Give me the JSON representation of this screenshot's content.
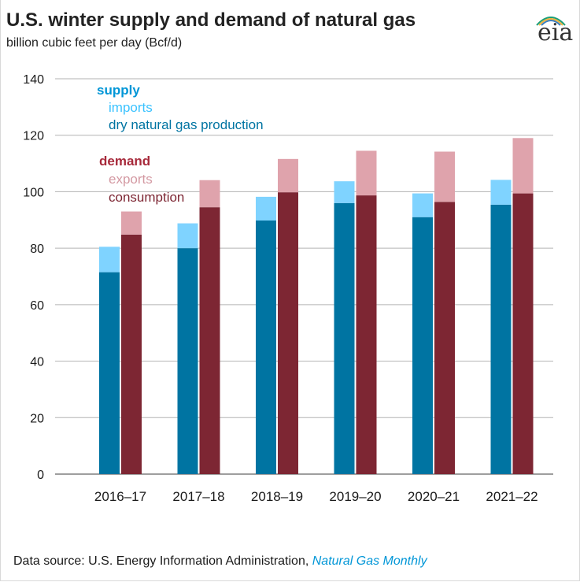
{
  "title": "U.S. winter supply and demand of natural gas",
  "subtitle": "billion cubic feet per day (Bcf/d)",
  "logo_text": "eia",
  "source_prefix": "Data source: U.S. Energy Information Administration,",
  "source_link": "Natural Gas Monthly",
  "colors": {
    "production": "#0074a2",
    "imports": "#7fd3ff",
    "consumption": "#7d2633",
    "exports": "#dfa3ac",
    "supply_label": "#0096d7",
    "demand_label": "#a72a3b",
    "imports_label": "#3cc3ff",
    "exports_label": "#d49aa3",
    "gridline": "#b3b3b3"
  },
  "chart_data": {
    "type": "bar",
    "stacked_groups": true,
    "categories": [
      "2016–17",
      "2017–18",
      "2018–19",
      "2019–20",
      "2020–21",
      "2021–22"
    ],
    "ylim": [
      0,
      140
    ],
    "yticks": [
      "0",
      "20",
      "40",
      "60",
      "80",
      "100",
      "120",
      "140"
    ],
    "grid": true,
    "legend_placement": "top-left",
    "groups": [
      {
        "name": "supply",
        "series": [
          {
            "name": "dry natural gas production",
            "values": [
              71.5,
              80,
              89.8,
              96,
              91,
              95.4
            ]
          },
          {
            "name": "imports",
            "values": [
              9,
              8.8,
              8.4,
              7.7,
              8.4,
              8.8
            ]
          }
        ]
      },
      {
        "name": "demand",
        "series": [
          {
            "name": "consumption",
            "values": [
              84.8,
              94.5,
              99.8,
              98.7,
              96.4,
              99.4
            ]
          },
          {
            "name": "exports",
            "values": [
              8.2,
              9.6,
              11.8,
              15.8,
              17.8,
              19.6
            ]
          }
        ]
      }
    ]
  }
}
